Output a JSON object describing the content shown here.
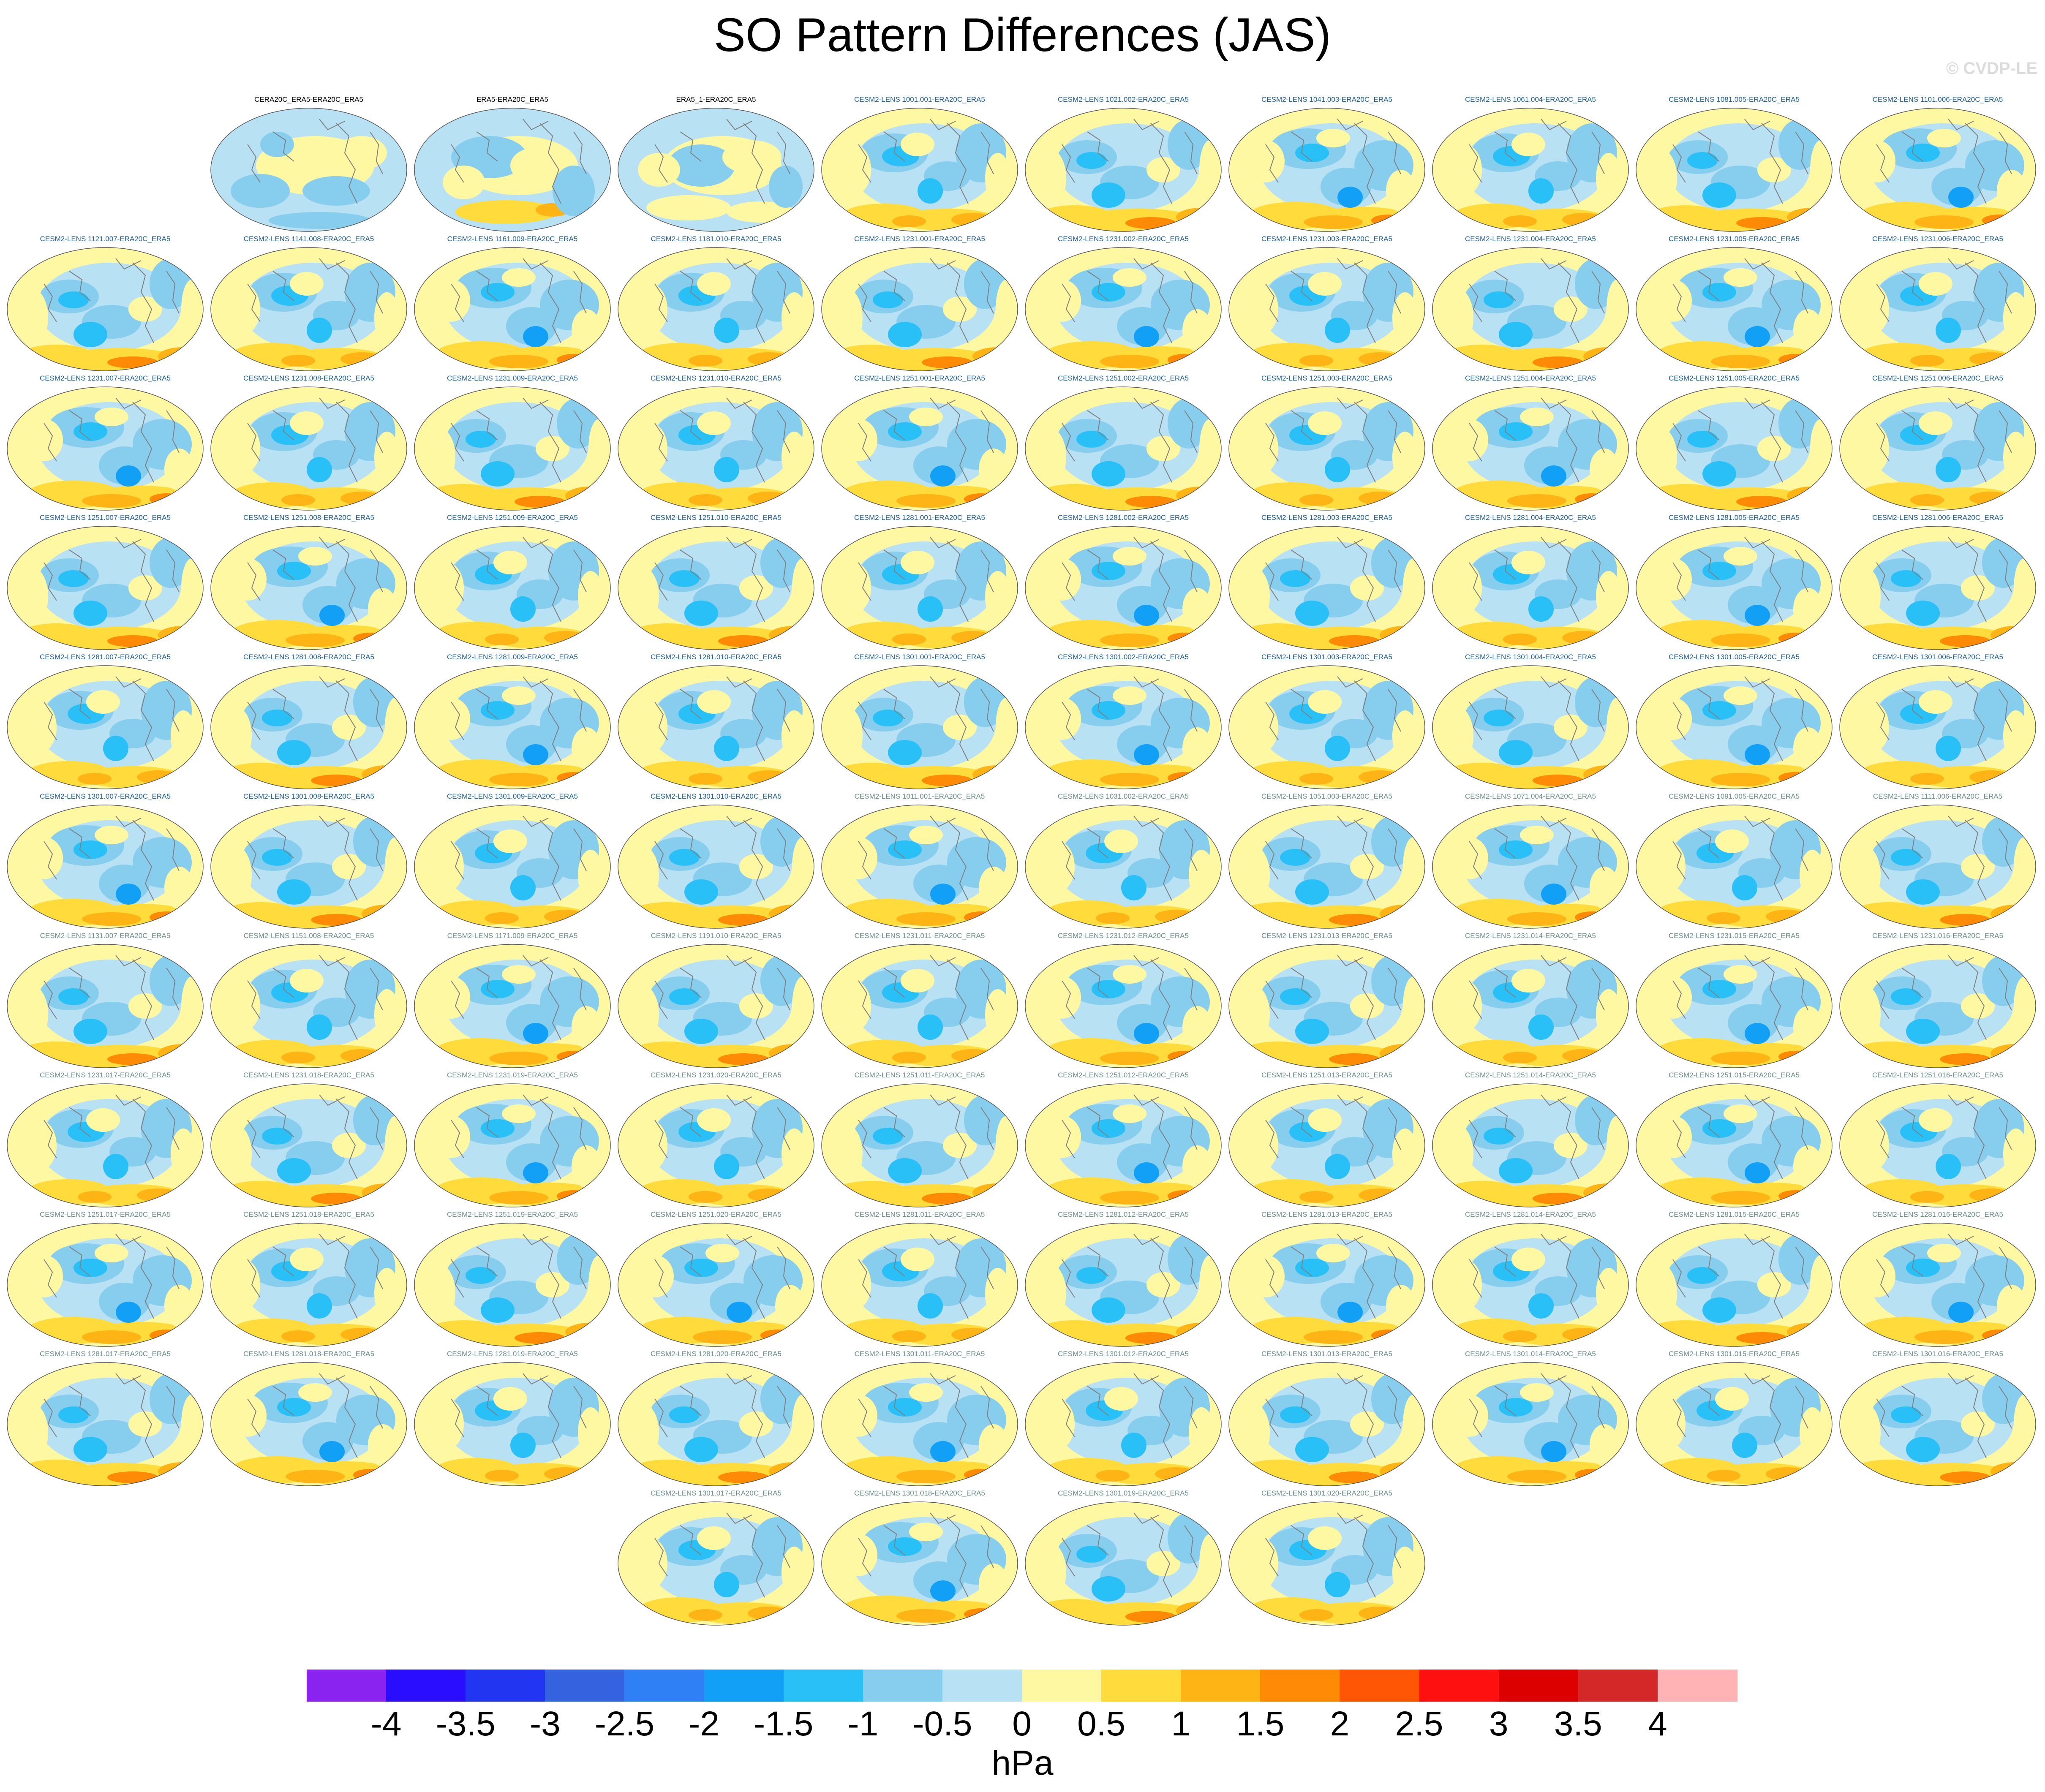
{
  "title": "SO Pattern Differences (JAS)",
  "watermark": "© CVDP-LE",
  "units": "hPa",
  "colors": {
    "obs_label": "#000000",
    "lens_blue_label": "#1f5f9a",
    "lens_gray_label": "#6b8e8a",
    "land": "#7f7f7f",
    "map_border": "#555555"
  },
  "colorbar": {
    "colors": [
      "#8a22f0",
      "#2a0cff",
      "#2236f2",
      "#3563e0",
      "#2e80f4",
      "#12a0f7",
      "#29c0f8",
      "#86cdee",
      "#b8e1f4",
      "#fff8a2",
      "#ffdc3b",
      "#ffb416",
      "#ff8a05",
      "#ff5605",
      "#ff1010",
      "#dc0000",
      "#d42828",
      "#ffb3b5"
    ],
    "tick_labels": [
      "-4",
      "-3.5",
      "-3",
      "-2.5",
      "-2",
      "-1.5",
      "-1",
      "-0.5",
      "0",
      "0.5",
      "1",
      "1.5",
      "2",
      "2.5",
      "3",
      "3.5",
      "4"
    ]
  },
  "panels": [
    {
      "label": "CERA20C_ERA5-ERA20C_ERA5",
      "style": "obs",
      "pattern": "obsA"
    },
    {
      "label": "ERA5-ERA20C_ERA5",
      "style": "obs",
      "pattern": "obsB"
    },
    {
      "label": "ERA5_1-ERA20C_ERA5",
      "style": "obs",
      "pattern": "obsC"
    },
    {
      "label": "CESM2-LENS 1001.001-ERA20C_ERA5",
      "style": "blue",
      "pattern": "v0"
    },
    {
      "label": "CESM2-LENS 1021.002-ERA20C_ERA5",
      "style": "blue",
      "pattern": "v1"
    },
    {
      "label": "CESM2-LENS 1041.003-ERA20C_ERA5",
      "style": "blue",
      "pattern": "v2"
    },
    {
      "label": "CESM2-LENS 1061.004-ERA20C_ERA5",
      "style": "blue",
      "pattern": "v0"
    },
    {
      "label": "CESM2-LENS 1081.005-ERA20C_ERA5",
      "style": "blue",
      "pattern": "v1"
    },
    {
      "label": "CESM2-LENS 1101.006-ERA20C_ERA5",
      "style": "blue",
      "pattern": "v2"
    },
    {
      "label": "CESM2-LENS 1121.007-ERA20C_ERA5",
      "style": "blue",
      "pattern": "v1"
    },
    {
      "label": "CESM2-LENS 1141.008-ERA20C_ERA5",
      "style": "blue",
      "pattern": "v0"
    },
    {
      "label": "CESM2-LENS 1161.009-ERA20C_ERA5",
      "style": "blue",
      "pattern": "v2"
    },
    {
      "label": "CESM2-LENS 1181.010-ERA20C_ERA5",
      "style": "blue",
      "pattern": "v0"
    },
    {
      "label": "CESM2-LENS 1231.001-ERA20C_ERA5",
      "style": "blue",
      "pattern": "v1"
    },
    {
      "label": "CESM2-LENS 1231.002-ERA20C_ERA5",
      "style": "blue",
      "pattern": "v2"
    },
    {
      "label": "CESM2-LENS 1231.003-ERA20C_ERA5",
      "style": "blue",
      "pattern": "v0"
    },
    {
      "label": "CESM2-LENS 1231.004-ERA20C_ERA5",
      "style": "blue",
      "pattern": "v1"
    },
    {
      "label": "CESM2-LENS 1231.005-ERA20C_ERA5",
      "style": "blue",
      "pattern": "v2"
    },
    {
      "label": "CESM2-LENS 1231.006-ERA20C_ERA5",
      "style": "blue",
      "pattern": "v0"
    },
    {
      "label": "CESM2-LENS 1231.007-ERA20C_ERA5",
      "style": "blue",
      "pattern": "v2"
    },
    {
      "label": "CESM2-LENS 1231.008-ERA20C_ERA5",
      "style": "blue",
      "pattern": "v0"
    },
    {
      "label": "CESM2-LENS 1231.009-ERA20C_ERA5",
      "style": "blue",
      "pattern": "v1"
    },
    {
      "label": "CESM2-LENS 1231.010-ERA20C_ERA5",
      "style": "blue",
      "pattern": "v0"
    },
    {
      "label": "CESM2-LENS 1251.001-ERA20C_ERA5",
      "style": "blue",
      "pattern": "v2"
    },
    {
      "label": "CESM2-LENS 1251.002-ERA20C_ERA5",
      "style": "blue",
      "pattern": "v1"
    },
    {
      "label": "CESM2-LENS 1251.003-ERA20C_ERA5",
      "style": "blue",
      "pattern": "v0"
    },
    {
      "label": "CESM2-LENS 1251.004-ERA20C_ERA5",
      "style": "blue",
      "pattern": "v2"
    },
    {
      "label": "CESM2-LENS 1251.005-ERA20C_ERA5",
      "style": "blue",
      "pattern": "v1"
    },
    {
      "label": "CESM2-LENS 1251.006-ERA20C_ERA5",
      "style": "blue",
      "pattern": "v0"
    },
    {
      "label": "CESM2-LENS 1251.007-ERA20C_ERA5",
      "style": "blue",
      "pattern": "v1"
    },
    {
      "label": "CESM2-LENS 1251.008-ERA20C_ERA5",
      "style": "blue",
      "pattern": "v2"
    },
    {
      "label": "CESM2-LENS 1251.009-ERA20C_ERA5",
      "style": "blue",
      "pattern": "v0"
    },
    {
      "label": "CESM2-LENS 1251.010-ERA20C_ERA5",
      "style": "blue",
      "pattern": "v1"
    },
    {
      "label": "CESM2-LENS 1281.001-ERA20C_ERA5",
      "style": "blue",
      "pattern": "v0"
    },
    {
      "label": "CESM2-LENS 1281.002-ERA20C_ERA5",
      "style": "blue",
      "pattern": "v2"
    },
    {
      "label": "CESM2-LENS 1281.003-ERA20C_ERA5",
      "style": "blue",
      "pattern": "v1"
    },
    {
      "label": "CESM2-LENS 1281.004-ERA20C_ERA5",
      "style": "blue",
      "pattern": "v0"
    },
    {
      "label": "CESM2-LENS 1281.005-ERA20C_ERA5",
      "style": "blue",
      "pattern": "v2"
    },
    {
      "label": "CESM2-LENS 1281.006-ERA20C_ERA5",
      "style": "blue",
      "pattern": "v1"
    },
    {
      "label": "CESM2-LENS 1281.007-ERA20C_ERA5",
      "style": "blue",
      "pattern": "v0"
    },
    {
      "label": "CESM2-LENS 1281.008-ERA20C_ERA5",
      "style": "blue",
      "pattern": "v1"
    },
    {
      "label": "CESM2-LENS 1281.009-ERA20C_ERA5",
      "style": "blue",
      "pattern": "v2"
    },
    {
      "label": "CESM2-LENS 1281.010-ERA20C_ERA5",
      "style": "blue",
      "pattern": "v0"
    },
    {
      "label": "CESM2-LENS 1301.001-ERA20C_ERA5",
      "style": "blue",
      "pattern": "v1"
    },
    {
      "label": "CESM2-LENS 1301.002-ERA20C_ERA5",
      "style": "blue",
      "pattern": "v2"
    },
    {
      "label": "CESM2-LENS 1301.003-ERA20C_ERA5",
      "style": "blue",
      "pattern": "v0"
    },
    {
      "label": "CESM2-LENS 1301.004-ERA20C_ERA5",
      "style": "blue",
      "pattern": "v1"
    },
    {
      "label": "CESM2-LENS 1301.005-ERA20C_ERA5",
      "style": "blue",
      "pattern": "v2"
    },
    {
      "label": "CESM2-LENS 1301.006-ERA20C_ERA5",
      "style": "blue",
      "pattern": "v0"
    },
    {
      "label": "CESM2-LENS 1301.007-ERA20C_ERA5",
      "style": "blue",
      "pattern": "v2"
    },
    {
      "label": "CESM2-LENS 1301.008-ERA20C_ERA5",
      "style": "blue",
      "pattern": "v1"
    },
    {
      "label": "CESM2-LENS 1301.009-ERA20C_ERA5",
      "style": "blue",
      "pattern": "v0"
    },
    {
      "label": "CESM2-LENS 1301.010-ERA20C_ERA5",
      "style": "blue",
      "pattern": "v1"
    },
    {
      "label": "CESM2-LENS 1011.001-ERA20C_ERA5",
      "style": "gray",
      "pattern": "v2"
    },
    {
      "label": "CESM2-LENS 1031.002-ERA20C_ERA5",
      "style": "gray",
      "pattern": "v0"
    },
    {
      "label": "CESM2-LENS 1051.003-ERA20C_ERA5",
      "style": "gray",
      "pattern": "v1"
    },
    {
      "label": "CESM2-LENS 1071.004-ERA20C_ERA5",
      "style": "gray",
      "pattern": "v2"
    },
    {
      "label": "CESM2-LENS 1091.005-ERA20C_ERA5",
      "style": "gray",
      "pattern": "v0"
    },
    {
      "label": "CESM2-LENS 1111.006-ERA20C_ERA5",
      "style": "gray",
      "pattern": "v1"
    },
    {
      "label": "CESM2-LENS 1131.007-ERA20C_ERA5",
      "style": "gray",
      "pattern": "v1"
    },
    {
      "label": "CESM2-LENS 1151.008-ERA20C_ERA5",
      "style": "gray",
      "pattern": "v0"
    },
    {
      "label": "CESM2-LENS 1171.009-ERA20C_ERA5",
      "style": "gray",
      "pattern": "v2"
    },
    {
      "label": "CESM2-LENS 1191.010-ERA20C_ERA5",
      "style": "gray",
      "pattern": "v1"
    },
    {
      "label": "CESM2-LENS 1231.011-ERA20C_ERA5",
      "style": "gray",
      "pattern": "v0"
    },
    {
      "label": "CESM2-LENS 1231.012-ERA20C_ERA5",
      "style": "gray",
      "pattern": "v2"
    },
    {
      "label": "CESM2-LENS 1231.013-ERA20C_ERA5",
      "style": "gray",
      "pattern": "v1"
    },
    {
      "label": "CESM2-LENS 1231.014-ERA20C_ERA5",
      "style": "gray",
      "pattern": "v0"
    },
    {
      "label": "CESM2-LENS 1231.015-ERA20C_ERA5",
      "style": "gray",
      "pattern": "v2"
    },
    {
      "label": "CESM2-LENS 1231.016-ERA20C_ERA5",
      "style": "gray",
      "pattern": "v1"
    },
    {
      "label": "CESM2-LENS 1231.017-ERA20C_ERA5",
      "style": "gray",
      "pattern": "v0"
    },
    {
      "label": "CESM2-LENS 1231.018-ERA20C_ERA5",
      "style": "gray",
      "pattern": "v1"
    },
    {
      "label": "CESM2-LENS 1231.019-ERA20C_ERA5",
      "style": "gray",
      "pattern": "v2"
    },
    {
      "label": "CESM2-LENS 1231.020-ERA20C_ERA5",
      "style": "gray",
      "pattern": "v0"
    },
    {
      "label": "CESM2-LENS 1251.011-ERA20C_ERA5",
      "style": "gray",
      "pattern": "v1"
    },
    {
      "label": "CESM2-LENS 1251.012-ERA20C_ERA5",
      "style": "gray",
      "pattern": "v2"
    },
    {
      "label": "CESM2-LENS 1251.013-ERA20C_ERA5",
      "style": "gray",
      "pattern": "v0"
    },
    {
      "label": "CESM2-LENS 1251.014-ERA20C_ERA5",
      "style": "gray",
      "pattern": "v1"
    },
    {
      "label": "CESM2-LENS 1251.015-ERA20C_ERA5",
      "style": "gray",
      "pattern": "v2"
    },
    {
      "label": "CESM2-LENS 1251.016-ERA20C_ERA5",
      "style": "gray",
      "pattern": "v0"
    },
    {
      "label": "CESM2-LENS 1251.017-ERA20C_ERA5",
      "style": "gray",
      "pattern": "v2"
    },
    {
      "label": "CESM2-LENS 1251.018-ERA20C_ERA5",
      "style": "gray",
      "pattern": "v0"
    },
    {
      "label": "CESM2-LENS 1251.019-ERA20C_ERA5",
      "style": "gray",
      "pattern": "v1"
    },
    {
      "label": "CESM2-LENS 1251.020-ERA20C_ERA5",
      "style": "gray",
      "pattern": "v2"
    },
    {
      "label": "CESM2-LENS 1281.011-ERA20C_ERA5",
      "style": "gray",
      "pattern": "v0"
    },
    {
      "label": "CESM2-LENS 1281.012-ERA20C_ERA5",
      "style": "gray",
      "pattern": "v1"
    },
    {
      "label": "CESM2-LENS 1281.013-ERA20C_ERA5",
      "style": "gray",
      "pattern": "v2"
    },
    {
      "label": "CESM2-LENS 1281.014-ERA20C_ERA5",
      "style": "gray",
      "pattern": "v0"
    },
    {
      "label": "CESM2-LENS 1281.015-ERA20C_ERA5",
      "style": "gray",
      "pattern": "v1"
    },
    {
      "label": "CESM2-LENS 1281.016-ERA20C_ERA5",
      "style": "gray",
      "pattern": "v2"
    },
    {
      "label": "CESM2-LENS 1281.017-ERA20C_ERA5",
      "style": "gray",
      "pattern": "v1"
    },
    {
      "label": "CESM2-LENS 1281.018-ERA20C_ERA5",
      "style": "gray",
      "pattern": "v2"
    },
    {
      "label": "CESM2-LENS 1281.019-ERA20C_ERA5",
      "style": "gray",
      "pattern": "v0"
    },
    {
      "label": "CESM2-LENS 1281.020-ERA20C_ERA5",
      "style": "gray",
      "pattern": "v1"
    },
    {
      "label": "CESM2-LENS 1301.011-ERA20C_ERA5",
      "style": "gray",
      "pattern": "v2"
    },
    {
      "label": "CESM2-LENS 1301.012-ERA20C_ERA5",
      "style": "gray",
      "pattern": "v0"
    },
    {
      "label": "CESM2-LENS 1301.013-ERA20C_ERA5",
      "style": "gray",
      "pattern": "v1"
    },
    {
      "label": "CESM2-LENS 1301.014-ERA20C_ERA5",
      "style": "gray",
      "pattern": "v2"
    },
    {
      "label": "CESM2-LENS 1301.015-ERA20C_ERA5",
      "style": "gray",
      "pattern": "v0"
    },
    {
      "label": "CESM2-LENS 1301.016-ERA20C_ERA5",
      "style": "gray",
      "pattern": "v1"
    },
    {
      "label": "CESM2-LENS 1301.017-ERA20C_ERA5",
      "style": "gray",
      "pattern": "v0"
    },
    {
      "label": "CESM2-LENS 1301.018-ERA20C_ERA5",
      "style": "gray",
      "pattern": "v2"
    },
    {
      "label": "CESM2-LENS 1301.019-ERA20C_ERA5",
      "style": "gray",
      "pattern": "v1"
    },
    {
      "label": "CESM2-LENS 1301.020-ERA20C_ERA5",
      "style": "gray",
      "pattern": "v0"
    }
  ]
}
